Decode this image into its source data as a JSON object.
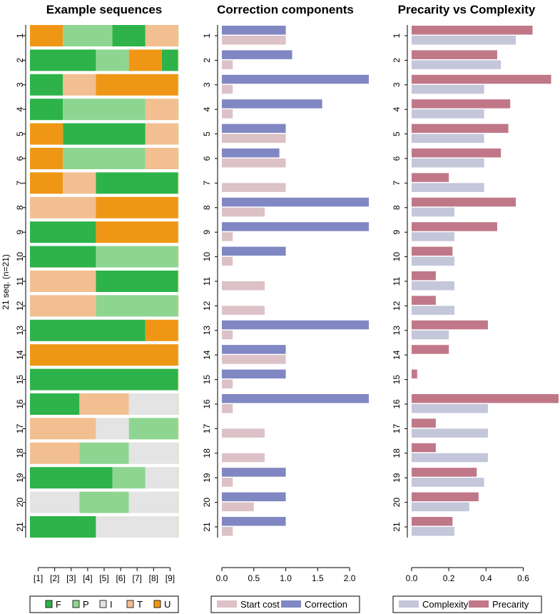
{
  "chart_data": [
    {
      "type": "stacked-bar",
      "title": "Example sequences",
      "ylabel": "21 seq. (n=21)",
      "sequence_ids": [
        "1",
        "2",
        "3",
        "4",
        "5",
        "6",
        "7",
        "8",
        "9",
        "10",
        "11",
        "12",
        "13",
        "14",
        "15",
        "16",
        "17",
        "18",
        "19",
        "20",
        "21"
      ],
      "position_labels": [
        "[1]",
        "[2]",
        "[3]",
        "[4]",
        "[5]",
        "[6]",
        "[7]",
        "[8]",
        "[9]"
      ],
      "states": [
        {
          "code": "F",
          "color": "#2db34a"
        },
        {
          "code": "P",
          "color": "#8fd592"
        },
        {
          "code": "I",
          "color": "#e4e4e4"
        },
        {
          "code": "T",
          "color": "#f2bf91"
        },
        {
          "code": "U",
          "color": "#ef9715"
        }
      ],
      "sequences": [
        "UUPPPFFTT",
        "FFFFPPUUF",
        "FFTTUUUUU",
        "FFPPPPPTT",
        "UUFFFFFTT",
        "UUPPPPPTT",
        "UUTTFFFFF",
        "TTTTUUUUU",
        "FFFFUUUUU",
        "FFFFPPPPP",
        "TTTTFFFFF",
        "TTTTPPPPP",
        "FFFFFFFUU",
        "UUUUUUUUU",
        "FFFFFFFFF",
        "FFFTTTIII",
        "TTTTIIPPP",
        "TTTPPPIII",
        "FFFFFPPII",
        "IIIPPPIII",
        "FFFFIIIII"
      ]
    },
    {
      "type": "bar",
      "orientation": "horizontal",
      "title": "Correction components",
      "categories": [
        "1",
        "2",
        "3",
        "4",
        "5",
        "6",
        "7",
        "8",
        "9",
        "10",
        "11",
        "12",
        "13",
        "14",
        "15",
        "16",
        "17",
        "18",
        "19",
        "20",
        "21"
      ],
      "series": [
        {
          "name": "Correction",
          "color": "#8087c2",
          "values": [
            1.0,
            1.1,
            2.3,
            1.57,
            1.0,
            0.9,
            0.0,
            2.3,
            2.3,
            1.0,
            0.0,
            0.0,
            2.3,
            1.0,
            1.0,
            2.3,
            0.0,
            0.0,
            1.0,
            1.0,
            1.0
          ]
        },
        {
          "name": "Start cost",
          "color": "#dcc1c7",
          "values": [
            1.0,
            0.17,
            0.17,
            0.17,
            1.0,
            1.0,
            1.0,
            0.67,
            0.17,
            0.17,
            0.67,
            0.67,
            0.17,
            1.0,
            0.17,
            0.17,
            0.67,
            0.67,
            0.17,
            0.5,
            0.17
          ]
        }
      ],
      "xlim": [
        0,
        2.3
      ],
      "xticks": [
        "0.0",
        "0.5",
        "1.0",
        "1.5",
        "2.0"
      ],
      "legend": [
        "Start cost",
        "Correction"
      ]
    },
    {
      "type": "bar",
      "orientation": "horizontal",
      "title": "Precarity vs Complexity",
      "categories": [
        "1",
        "2",
        "3",
        "4",
        "5",
        "6",
        "7",
        "8",
        "9",
        "10",
        "11",
        "12",
        "13",
        "14",
        "15",
        "16",
        "17",
        "18",
        "19",
        "20",
        "21"
      ],
      "series": [
        {
          "name": "Precarity",
          "color": "#c07888",
          "values": [
            0.65,
            0.46,
            0.75,
            0.53,
            0.52,
            0.48,
            0.2,
            0.56,
            0.46,
            0.22,
            0.13,
            0.13,
            0.41,
            0.2,
            0.03,
            0.79,
            0.13,
            0.13,
            0.35,
            0.36,
            0.22
          ]
        },
        {
          "name": "Complexity",
          "color": "#c4c6da",
          "values": [
            0.56,
            0.48,
            0.39,
            0.39,
            0.39,
            0.39,
            0.39,
            0.23,
            0.23,
            0.23,
            0.23,
            0.23,
            0.2,
            0.0,
            0.0,
            0.41,
            0.41,
            0.41,
            0.39,
            0.31,
            0.23
          ]
        }
      ],
      "xlim": [
        0,
        0.79
      ],
      "xticks": [
        "0.0",
        "0.2",
        "0.4",
        "0.6"
      ],
      "legend": [
        "Complexity",
        "Precarity"
      ]
    }
  ]
}
